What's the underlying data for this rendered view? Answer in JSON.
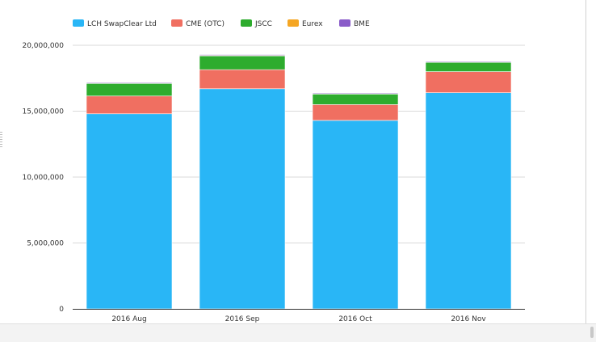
{
  "chart_data": {
    "type": "bar",
    "stacked": true,
    "categories": [
      "2016 Aug",
      "2016 Sep",
      "2016 Oct",
      "2016 Nov"
    ],
    "series": [
      {
        "name": "LCH SwapClear Ltd",
        "color": "#29b6f6",
        "values": [
          14800000,
          16700000,
          14300000,
          16400000
        ]
      },
      {
        "name": "CME (OTC)",
        "color": "#f06f61",
        "values": [
          1350000,
          1450000,
          1200000,
          1600000
        ]
      },
      {
        "name": "JSCC",
        "color": "#2eac2e",
        "values": [
          950000,
          1050000,
          800000,
          700000
        ]
      },
      {
        "name": "Eurex",
        "color": "#f5a623",
        "values": [
          30000,
          30000,
          30000,
          30000
        ]
      },
      {
        "name": "BME",
        "color": "#8a5cc9",
        "values": [
          5000,
          5000,
          5000,
          5000
        ]
      }
    ],
    "yticks": [
      "0",
      "5,000,000",
      "10,000,000",
      "15,000,000",
      "20,000,000"
    ],
    "ytick_values": [
      0,
      5000000,
      10000000,
      15000000,
      20000000
    ],
    "ylim": [
      0,
      20000000
    ],
    "grid": true,
    "legend_position": "top-left"
  }
}
